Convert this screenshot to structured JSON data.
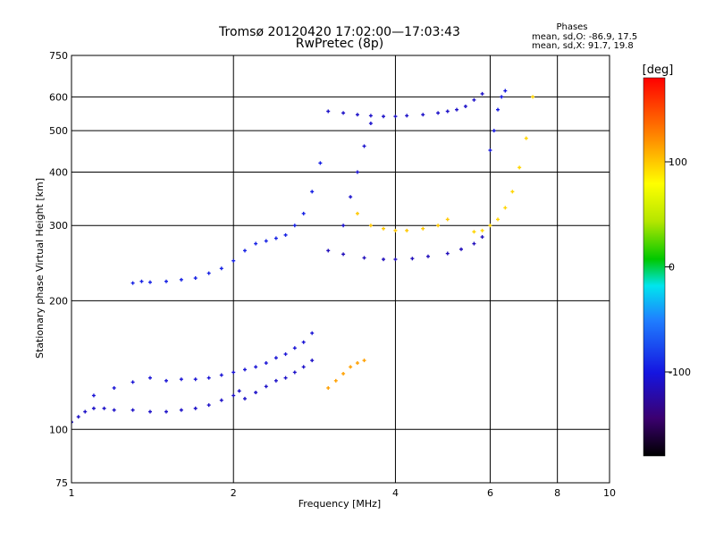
{
  "chart_data": {
    "type": "scatter",
    "title": "Tromsø 20120420 17:02:00—17:03:43",
    "subtitle": "RwPretec (8p)",
    "xlabel": "Frequency [MHz]",
    "ylabel": "Stationary phase Virtual Height [km]",
    "x_scale": "log",
    "y_scale": "log",
    "xlim": [
      1,
      10
    ],
    "ylim": [
      75,
      750
    ],
    "x_ticks": [
      1,
      2,
      4,
      6,
      8,
      10
    ],
    "x_tick_labels": [
      "1",
      "2",
      "4",
      "6",
      "8",
      "10"
    ],
    "y_ticks": [
      75,
      100,
      200,
      300,
      400,
      500,
      600,
      750
    ],
    "y_tick_labels": [
      "75",
      "100",
      "200",
      "300",
      "400",
      "500",
      "600",
      "750"
    ],
    "grid": true,
    "phase_stats": {
      "heading": "Phases",
      "line_o": "mean, sd,O: -86.9, 17.5",
      "line_x": "mean, sd,X:  91.7, 19.8"
    },
    "colorbar": {
      "label": "[deg]",
      "range": [
        -180,
        180
      ],
      "ticks": [
        100,
        0,
        -100
      ],
      "tick_labels": [
        "100",
        "0",
        "-100"
      ]
    },
    "series": [
      {
        "phase": -110,
        "x": [
          1.0,
          1.03,
          1.06,
          1.1,
          1.15,
          1.2,
          1.3,
          1.4,
          1.5,
          1.6,
          1.7,
          1.8,
          1.9,
          2.0,
          2.05,
          2.1,
          2.2,
          2.3,
          2.4,
          2.5,
          2.6,
          2.7,
          2.8
        ],
        "y": [
          104,
          107,
          110,
          112,
          112,
          111,
          111,
          110,
          110,
          111,
          112,
          114,
          117,
          120,
          123,
          118,
          122,
          126,
          130,
          132,
          136,
          140,
          145
        ]
      },
      {
        "phase": -105,
        "x": [
          1.1,
          1.2,
          1.3,
          1.4,
          1.5,
          1.6,
          1.7,
          1.8,
          1.9,
          2.0,
          2.1,
          2.2,
          2.3,
          2.4,
          2.5,
          2.6,
          2.7,
          2.8
        ],
        "y": [
          120,
          125,
          129,
          132,
          130,
          131,
          131,
          132,
          134,
          136,
          138,
          140,
          143,
          147,
          150,
          155,
          160,
          168
        ]
      },
      {
        "phase": -95,
        "x": [
          1.3,
          1.35,
          1.4,
          1.5,
          1.6,
          1.7,
          1.8,
          1.9,
          2.0,
          2.1,
          2.2,
          2.3,
          2.4,
          2.5,
          2.6,
          2.7,
          2.8,
          2.9
        ],
        "y": [
          220,
          222,
          221,
          222,
          224,
          226,
          232,
          238,
          248,
          262,
          272,
          276,
          280,
          285,
          300,
          320,
          360,
          420
        ]
      },
      {
        "phase": -110,
        "x": [
          3.0,
          3.2,
          3.4,
          3.6,
          3.8,
          4.0,
          4.2,
          4.5,
          4.8,
          5.0,
          5.2,
          5.4,
          5.6,
          5.8
        ],
        "y": [
          555,
          550,
          545,
          542,
          540,
          540,
          542,
          545,
          550,
          555,
          560,
          570,
          590,
          610
        ]
      },
      {
        "phase": -115,
        "x": [
          3.0,
          3.2,
          3.5,
          3.8,
          4.0,
          4.3,
          4.6,
          5.0,
          5.3,
          5.6,
          5.8
        ],
        "y": [
          262,
          257,
          252,
          250,
          250,
          251,
          254,
          258,
          264,
          272,
          282
        ]
      },
      {
        "phase": -108,
        "x": [
          3.2,
          3.3,
          3.4,
          3.5,
          3.6
        ],
        "y": [
          300,
          350,
          400,
          460,
          520
        ]
      },
      {
        "phase": 100,
        "x": [
          3.4,
          3.6,
          3.8,
          4.0,
          4.2,
          4.5,
          4.8,
          5.0
        ],
        "y": [
          320,
          300,
          295,
          292,
          292,
          295,
          300,
          310
        ]
      },
      {
        "phase": 95,
        "x": [
          5.6,
          5.8,
          6.0,
          6.2,
          6.4,
          6.6,
          6.8,
          7.0,
          7.2
        ],
        "y": [
          290,
          292,
          300,
          310,
          330,
          360,
          410,
          480,
          600
        ]
      },
      {
        "phase": 115,
        "x": [
          3.0,
          3.1,
          3.2,
          3.3,
          3.4,
          3.5
        ],
        "y": [
          125,
          130,
          135,
          140,
          143,
          145
        ]
      },
      {
        "phase": -100,
        "x": [
          6.0,
          6.1,
          6.2,
          6.3,
          6.4
        ],
        "y": [
          450,
          500,
          560,
          600,
          620
        ]
      }
    ]
  }
}
